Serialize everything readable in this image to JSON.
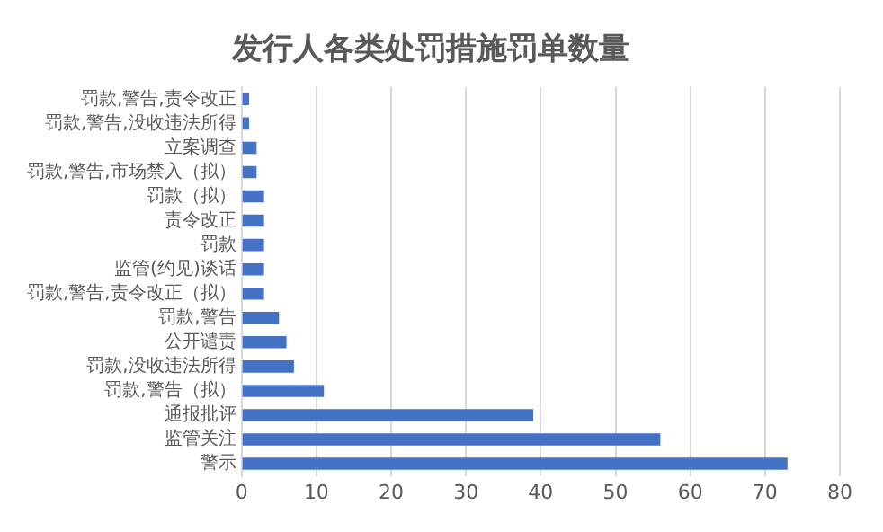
{
  "chart_data": {
    "type": "bar",
    "orientation": "horizontal",
    "title": "发行人各类处罚措施罚单数量",
    "categories": [
      "罚款,警告,责令改正",
      "罚款,警告,没收违法所得",
      "立案调查",
      "罚款,警告,市场禁入（拟）",
      "罚款（拟）",
      "责令改正",
      "罚款",
      "监管(约见)谈话",
      "罚款,警告,责令改正（拟）",
      "罚款,警告",
      "公开谴责",
      "罚款,没收违法所得",
      "罚款,警告（拟）",
      "通报批评",
      "监管关注",
      "警示"
    ],
    "values": [
      1,
      1,
      2,
      2,
      3,
      3,
      3,
      3,
      3,
      5,
      6,
      7,
      11,
      39,
      56,
      73
    ],
    "color": "#4472c4",
    "xlim": [
      0,
      80
    ],
    "xticks": [
      0,
      10,
      20,
      30,
      40,
      50,
      60,
      70,
      80
    ],
    "grid": "x",
    "legend": false
  }
}
